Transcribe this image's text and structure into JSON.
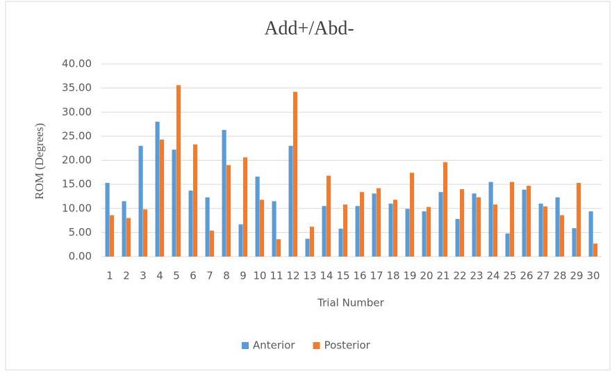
{
  "chart_data": {
    "type": "bar",
    "title": "Add+/Abd-",
    "x_label": "Trial Number",
    "y_label": "ROM (Degrees)",
    "categories": [
      "1",
      "2",
      "3",
      "4",
      "5",
      "6",
      "7",
      "8",
      "9",
      "10",
      "11",
      "12",
      "13",
      "14",
      "15",
      "16",
      "17",
      "18",
      "19",
      "20",
      "21",
      "22",
      "23",
      "24",
      "25",
      "26",
      "27",
      "28",
      "29",
      "30"
    ],
    "series": [
      {
        "name": "Anterior",
        "color": "#5b9bd5",
        "values": [
          15.3,
          11.5,
          23.0,
          28.0,
          22.2,
          13.7,
          12.3,
          26.3,
          6.7,
          16.6,
          11.5,
          23.0,
          3.7,
          10.5,
          5.8,
          10.5,
          13.1,
          11.0,
          9.9,
          9.4,
          13.4,
          7.8,
          13.1,
          15.5,
          4.8,
          13.9,
          11.0,
          12.3,
          5.9,
          9.4
        ]
      },
      {
        "name": "Posterior",
        "color": "#ed7d31",
        "values": [
          8.6,
          8.0,
          9.8,
          24.3,
          35.6,
          23.3,
          5.4,
          19.0,
          20.6,
          11.8,
          3.6,
          34.2,
          6.2,
          16.8,
          10.8,
          13.4,
          14.2,
          11.8,
          17.4,
          10.3,
          19.6,
          14.0,
          12.3,
          10.8,
          15.5,
          14.7,
          10.4,
          8.6,
          15.3,
          2.7
        ]
      }
    ],
    "ylim": [
      0,
      40
    ],
    "yticks": [
      {
        "value": 0,
        "label": "0.00"
      },
      {
        "value": 5,
        "label": "5.00"
      },
      {
        "value": 10,
        "label": "10.00"
      },
      {
        "value": 15,
        "label": "15.00"
      },
      {
        "value": 20,
        "label": "20.00"
      },
      {
        "value": 25,
        "label": "25.00"
      },
      {
        "value": 30,
        "label": "30.00"
      },
      {
        "value": 35,
        "label": "35.00"
      },
      {
        "value": 40,
        "label": "40.00"
      }
    ],
    "grid": true,
    "legend": "bottom"
  }
}
